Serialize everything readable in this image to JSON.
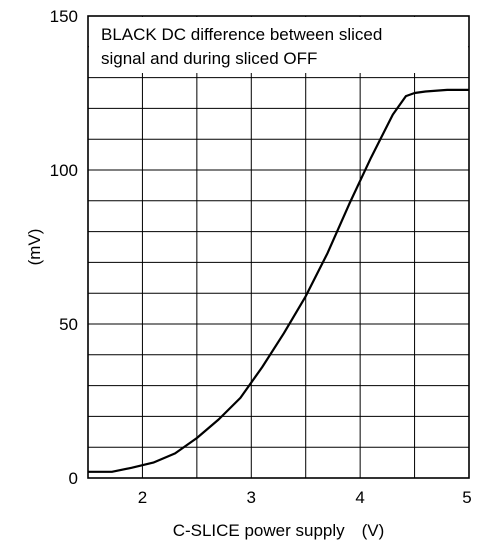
{
  "chart_data": {
    "type": "line",
    "title_lines": [
      "BLACK DC difference between sliced",
      "signal and during sliced OFF"
    ],
    "xlabel": "C-SLICE power supply (V)",
    "ylabel": "(mV)",
    "xlim": [
      1.5,
      5
    ],
    "ylim": [
      0,
      150
    ],
    "x_ticks": [
      2,
      3,
      4,
      5
    ],
    "y_ticks": [
      0,
      50,
      100,
      150
    ],
    "grid": true,
    "grid_x_step": 0.5,
    "grid_y_step": 10,
    "line_color": "#000000",
    "series": [
      {
        "x": [
          1.5,
          1.72,
          1.9,
          2.1,
          2.3,
          2.5,
          2.7,
          2.9,
          3.1,
          3.3,
          3.5,
          3.7,
          3.9,
          4.1,
          4.3,
          4.42,
          4.5,
          4.6,
          4.8,
          5.0
        ],
        "y": [
          2,
          2,
          3.3,
          5,
          8,
          13,
          19,
          26,
          36,
          47,
          59,
          73,
          89,
          104,
          118,
          124,
          125,
          125.5,
          126,
          126
        ]
      }
    ]
  }
}
